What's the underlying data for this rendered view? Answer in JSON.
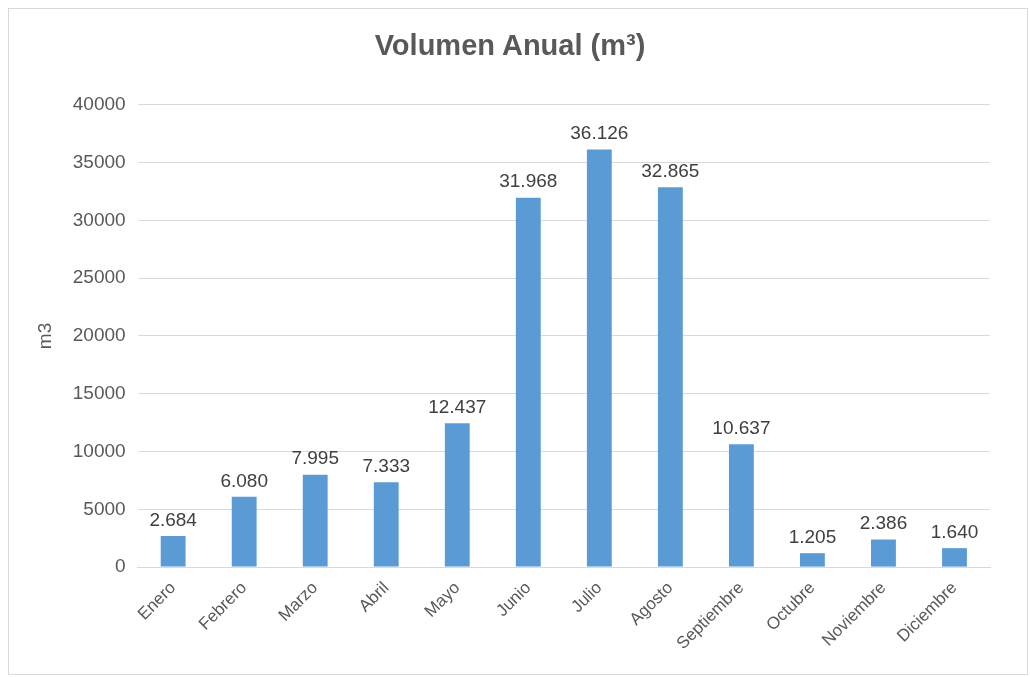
{
  "chart_data": {
    "type": "bar",
    "title": "Volumen Anual (m³)",
    "ylabel": "m3",
    "categories": [
      "Enero",
      "Febrero",
      "Marzo",
      "Abril",
      "Mayo",
      "Junio",
      "Julio",
      "Agosto",
      "Septiembre",
      "Octubre",
      "Noviembre",
      "Diciembre"
    ],
    "values": [
      2684,
      6080,
      7995,
      7333,
      12437,
      31968,
      36126,
      32865,
      10637,
      1205,
      2386,
      1640
    ],
    "value_labels": [
      "2.684",
      "6.080",
      "7.995",
      "7.333",
      "12.437",
      "31.968",
      "36.126",
      "32.865",
      "10.637",
      "1.205",
      "2.386",
      "1.640"
    ],
    "color": "#5b9bd5",
    "ylim": [
      0,
      40000
    ],
    "yticks": [
      0,
      5000,
      10000,
      15000,
      20000,
      25000,
      30000,
      35000,
      40000
    ],
    "grid": "y"
  }
}
